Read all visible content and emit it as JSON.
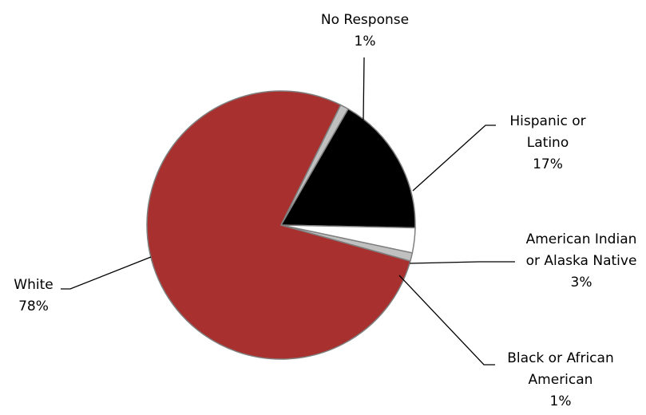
{
  "chart_data": {
    "type": "pie",
    "title": "",
    "start_angle_deg": 30,
    "direction": "clockwise",
    "slices": [
      {
        "label_lines": [
          "Hispanic or",
          "Latino"
        ],
        "value": 17,
        "value_label": "17%",
        "color": "#000000"
      },
      {
        "label_lines": [
          "American Indian",
          "or Alaska Native"
        ],
        "value": 3,
        "value_label": "3%",
        "color": "#ffffff"
      },
      {
        "label_lines": [
          "Black or African",
          "American"
        ],
        "value": 1,
        "value_label": "1%",
        "color": "#c0c0c0"
      },
      {
        "label_lines": [
          "White"
        ],
        "value": 78,
        "value_label": "78%",
        "color": "#a8302e"
      },
      {
        "label_lines": [
          "No Response"
        ],
        "value": 1,
        "value_label": "1%",
        "color": "#c0c0c0"
      }
    ]
  }
}
